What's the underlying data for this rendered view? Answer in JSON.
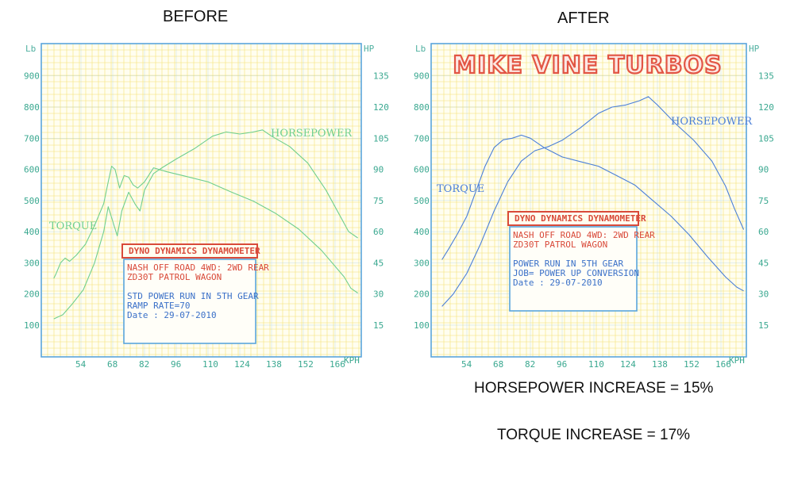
{
  "headings": {
    "before": "BEFORE",
    "after": "AFTER"
  },
  "brand": "MIKE VINE TURBOS",
  "stats": {
    "hp_increase": "HORSEPOWER INCREASE = 15%",
    "torque_increase": "TORQUE INCREASE = 17%"
  },
  "colors": {
    "before_trace": "#6fcf8f",
    "after_trace": "#4a7fd8",
    "grid": "#f2d84a",
    "axis": "#5aa5dc",
    "box_border": "#d94a3a",
    "brand": "#e25544"
  },
  "chart_data": [
    {
      "type": "line",
      "title": "BEFORE",
      "x_unit": "KPH",
      "y_left_unit": "Lb",
      "y_right_unit": "HP",
      "x_ticks": [
        54,
        68,
        82,
        96,
        110,
        124,
        138,
        152,
        166
      ],
      "y_left_ticks": [
        100,
        200,
        300,
        400,
        500,
        600,
        700,
        800,
        900
      ],
      "y_right_ticks": [
        15,
        30,
        45,
        60,
        75,
        90,
        105,
        120,
        135
      ],
      "xlim": [
        40,
        177
      ],
      "ylim": [
        0,
        980
      ],
      "grid": true,
      "labels": {
        "torque": "TORQUE",
        "horsepower": "HORSEPOWER"
      },
      "series": [
        {
          "name": "TORQUE",
          "x": [
            42,
            43,
            45,
            47,
            49,
            52,
            56,
            60,
            64,
            66,
            67.5,
            69,
            71,
            73,
            75,
            77,
            79,
            82,
            86,
            92,
            100,
            110,
            120,
            130,
            140,
            150,
            160,
            170,
            173,
            176
          ],
          "y": [
            250,
            265,
            300,
            315,
            305,
            325,
            360,
            420,
            490,
            560,
            610,
            600,
            540,
            580,
            575,
            550,
            540,
            560,
            605,
            592,
            578,
            560,
            528,
            498,
            458,
            408,
            340,
            255,
            218,
            203
          ]
        },
        {
          "name": "HORSEPOWER",
          "x": [
            42,
            46,
            50,
            55,
            60,
            64,
            66,
            68,
            70,
            72,
            75,
            78,
            80,
            82,
            86,
            90,
            96,
            104,
            112,
            118,
            124,
            130,
            134,
            138,
            146,
            154,
            162,
            168,
            172,
            176
          ],
          "y": [
            18,
            20,
            25,
            32,
            45,
            60,
            72,
            65,
            58,
            70,
            79,
            73,
            70,
            80,
            88,
            91,
            95,
            100,
            106,
            108,
            107,
            108,
            109,
            106,
            101,
            93,
            80,
            68,
            60,
            57
          ]
        }
      ],
      "box": {
        "title": "DYNO DYNAMICS DYNAMOMETER",
        "lines": [
          "NASH OFF ROAD 4WD: 2WD REAR",
          "ZD30T PATROL WAGON",
          "",
          "STD POWER RUN IN 5TH GEAR",
          "RAMP RATE=70",
          "Date      : 29-07-2010"
        ]
      }
    },
    {
      "type": "line",
      "title": "AFTER",
      "x_unit": "KPH",
      "y_left_unit": "Lb",
      "y_right_unit": "HP",
      "x_ticks": [
        54,
        68,
        82,
        96,
        110,
        124,
        138,
        152,
        166
      ],
      "y_left_ticks": [
        100,
        200,
        300,
        400,
        500,
        600,
        700,
        800,
        900
      ],
      "y_right_ticks": [
        15,
        30,
        45,
        60,
        75,
        90,
        105,
        120,
        135
      ],
      "xlim": [
        40,
        177
      ],
      "ylim": [
        0,
        980
      ],
      "grid": true,
      "labels": {
        "torque": "TORQUE",
        "horsepower": "HORSEPOWER"
      },
      "series": [
        {
          "name": "TORQUE",
          "x": [
            43,
            46,
            50,
            54,
            58,
            62,
            66,
            70,
            74,
            78,
            82,
            88,
            96,
            104,
            112,
            120,
            128,
            136,
            144,
            152,
            160,
            168,
            173,
            176
          ],
          "y": [
            310,
            345,
            395,
            450,
            530,
            610,
            670,
            695,
            700,
            710,
            700,
            670,
            640,
            625,
            610,
            580,
            550,
            500,
            450,
            390,
            320,
            255,
            222,
            210
          ]
        },
        {
          "name": "HORSEPOWER",
          "x": [
            43,
            48,
            54,
            60,
            66,
            72,
            78,
            84,
            90,
            96,
            104,
            112,
            118,
            124,
            130,
            134,
            138,
            146,
            154,
            162,
            168,
            172,
            176
          ],
          "y": [
            24,
            30,
            40,
            54,
            70,
            84,
            94,
            99,
            101,
            104,
            110,
            117,
            120,
            121,
            123,
            125,
            121,
            112,
            104,
            94,
            82,
            71,
            61
          ]
        }
      ],
      "box": {
        "title": "DYNO DYNAMICS DYNAMOMETER",
        "lines": [
          "NASH OFF ROAD 4WD: 2WD REAR",
          "ZD30T PATROL WAGON",
          "",
          "POWER RUN IN 5TH GEAR",
          "JOB= POWER UP CONVERSION",
          "Date      : 29-07-2010"
        ]
      }
    }
  ]
}
